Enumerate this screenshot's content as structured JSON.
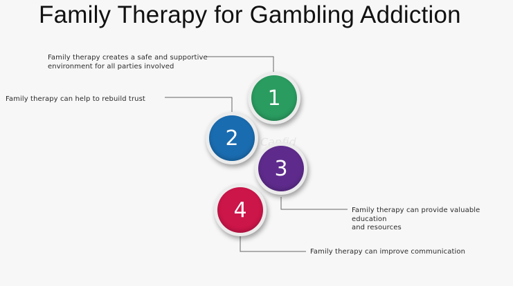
{
  "title": "Family Therapy for Gambling Addiction",
  "watermark": "Canfid",
  "items": [
    {
      "number": "1",
      "color": "#2a9c60",
      "text_lines": [
        "Family therapy creates a safe and supportive",
        "environment for all parties involved"
      ]
    },
    {
      "number": "2",
      "color": "#1a6cb0",
      "text_lines": [
        "Family therapy can help to rebuild trust"
      ]
    },
    {
      "number": "3",
      "color": "#5e2b8c",
      "text_lines": [
        "Family therapy can provide valuable education",
        "and resources"
      ]
    },
    {
      "number": "4",
      "color": "#cc1549",
      "text_lines": [
        "Family therapy can improve communication"
      ]
    }
  ]
}
